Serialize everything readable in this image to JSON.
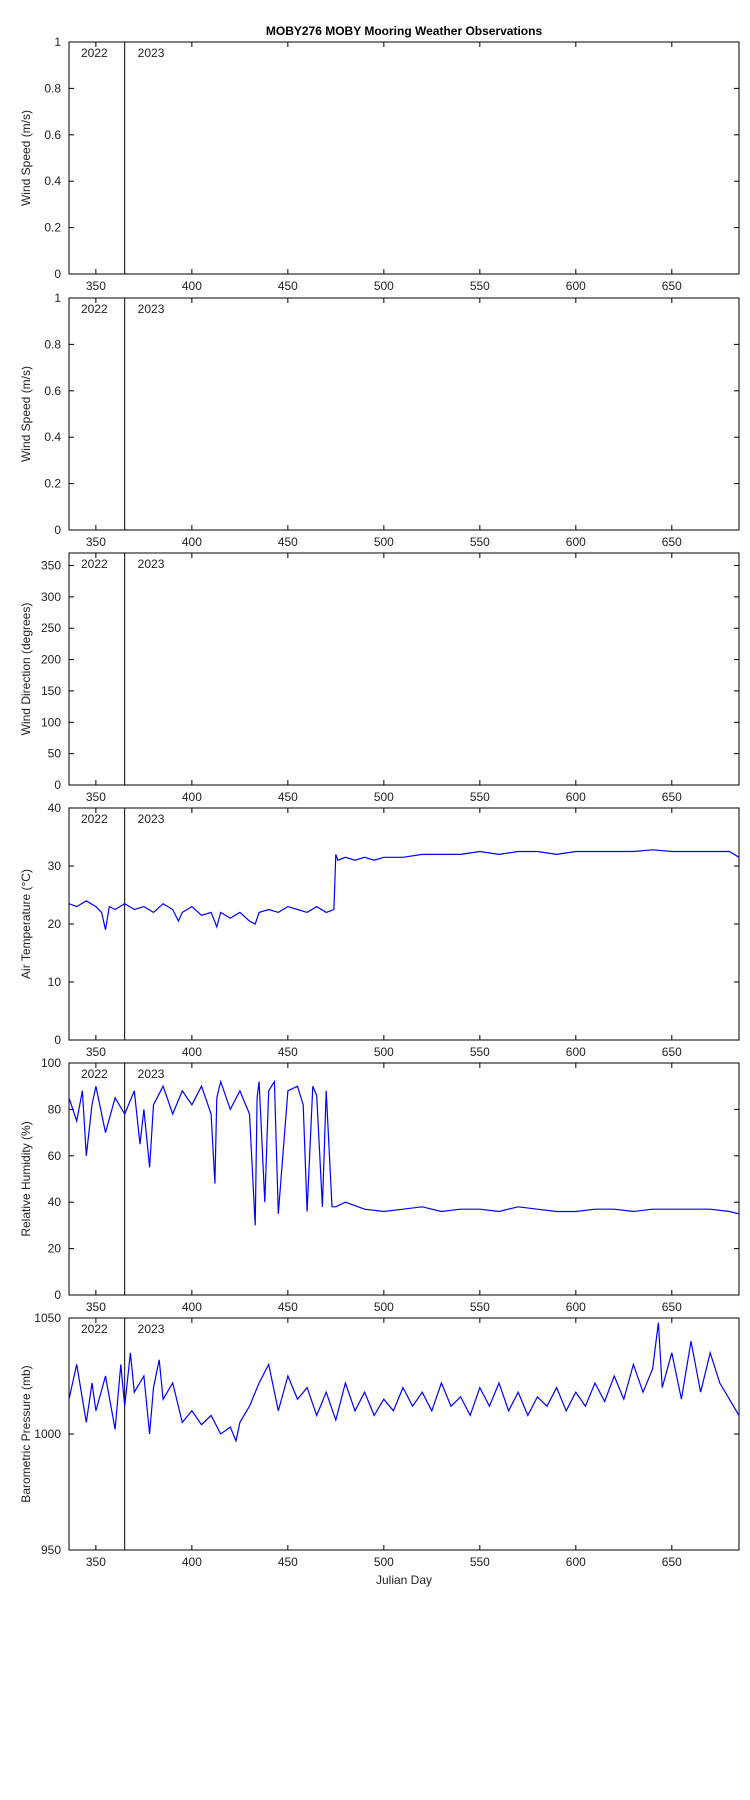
{
  "figure": {
    "title": "MOBY276 MOBY Mooring Weather Observations",
    "line_color": "#0000ff",
    "axis_color": "#000000"
  },
  "chart_data": [
    {
      "type": "line",
      "ylabel": "Wind Speed (m/s)",
      "xlim": [
        336,
        685
      ],
      "ylim": [
        0,
        1
      ],
      "yticks": [
        0,
        0.2,
        0.4,
        0.6,
        0.8,
        1
      ],
      "xticks": [
        350,
        400,
        450,
        500,
        550,
        600,
        650
      ],
      "year_divider_x": 365,
      "year_labels": [
        "2022",
        "2023"
      ],
      "series": []
    },
    {
      "type": "line",
      "ylabel": "Wind Speed (m/s)",
      "xlim": [
        336,
        685
      ],
      "ylim": [
        0,
        1
      ],
      "yticks": [
        0,
        0.2,
        0.4,
        0.6,
        0.8,
        1
      ],
      "xticks": [
        350,
        400,
        450,
        500,
        550,
        600,
        650
      ],
      "year_divider_x": 365,
      "year_labels": [
        "2022",
        "2023"
      ],
      "series": []
    },
    {
      "type": "line",
      "ylabel": "Wind Direction (degrees)",
      "xlim": [
        336,
        685
      ],
      "ylim": [
        0,
        370
      ],
      "yticks": [
        0,
        50,
        100,
        150,
        200,
        250,
        300,
        350
      ],
      "xticks": [
        350,
        400,
        450,
        500,
        550,
        600,
        650
      ],
      "year_divider_x": 365,
      "year_labels": [
        "2022",
        "2023"
      ],
      "series": []
    },
    {
      "type": "line",
      "ylabel": "Air Temperature (°C)",
      "xlim": [
        336,
        685
      ],
      "ylim": [
        0,
        40
      ],
      "yticks": [
        0,
        10,
        20,
        30,
        40
      ],
      "xticks": [
        350,
        400,
        450,
        500,
        550,
        600,
        650
      ],
      "year_divider_x": 365,
      "year_labels": [
        "2022",
        "2023"
      ],
      "series": [
        {
          "x": [
            336,
            340,
            345,
            350,
            353,
            355,
            357,
            360,
            365,
            370,
            375,
            380,
            385,
            390,
            393,
            395,
            400,
            405,
            410,
            413,
            415,
            420,
            425,
            430,
            433,
            435,
            440,
            445,
            450,
            455,
            460,
            465,
            470,
            474,
            475,
            476,
            480,
            485,
            490,
            495,
            500,
            510,
            520,
            530,
            540,
            550,
            560,
            570,
            580,
            590,
            600,
            610,
            620,
            630,
            640,
            650,
            660,
            670,
            680,
            685
          ],
          "y": [
            23.5,
            23,
            24,
            23,
            22,
            19,
            23,
            22.5,
            23.5,
            22.5,
            23,
            22,
            23.5,
            22.5,
            20.5,
            22,
            23,
            21.5,
            22,
            19.5,
            22,
            21,
            22,
            20.5,
            20,
            22,
            22.5,
            22,
            23,
            22.5,
            22,
            23,
            22,
            22.5,
            32,
            31,
            31.5,
            31,
            31.5,
            31,
            31.5,
            31.5,
            32,
            32,
            32,
            32.5,
            32,
            32.5,
            32.5,
            32,
            32.5,
            32.5,
            32.5,
            32.5,
            32.8,
            32.5,
            32.5,
            32.5,
            32.5,
            31.5
          ]
        }
      ]
    },
    {
      "type": "line",
      "ylabel": "Relative Humidity (%)",
      "xlim": [
        336,
        685
      ],
      "ylim": [
        0,
        100
      ],
      "yticks": [
        0,
        20,
        40,
        60,
        80,
        100
      ],
      "xticks": [
        350,
        400,
        450,
        500,
        550,
        600,
        650
      ],
      "year_divider_x": 365,
      "year_labels": [
        "2022",
        "2023"
      ],
      "series": [
        {
          "x": [
            336,
            340,
            343,
            345,
            348,
            350,
            355,
            360,
            365,
            370,
            373,
            375,
            378,
            380,
            385,
            390,
            395,
            400,
            405,
            410,
            412,
            413,
            415,
            420,
            425,
            430,
            433,
            434,
            435,
            438,
            440,
            443,
            445,
            450,
            455,
            458,
            460,
            463,
            465,
            468,
            470,
            473,
            475,
            480,
            490,
            500,
            510,
            520,
            530,
            540,
            550,
            560,
            570,
            580,
            590,
            600,
            610,
            620,
            630,
            640,
            650,
            660,
            670,
            680,
            685
          ],
          "y": [
            85,
            75,
            88,
            60,
            82,
            90,
            70,
            85,
            78,
            88,
            65,
            80,
            55,
            82,
            90,
            78,
            88,
            82,
            90,
            78,
            48,
            85,
            92,
            80,
            88,
            78,
            30,
            85,
            92,
            40,
            88,
            92,
            35,
            88,
            90,
            82,
            36,
            90,
            86,
            38,
            88,
            38,
            38,
            40,
            37,
            36,
            37,
            38,
            36,
            37,
            37,
            36,
            38,
            37,
            36,
            36,
            37,
            37,
            36,
            37,
            37,
            37,
            37,
            36,
            35
          ]
        }
      ]
    },
    {
      "type": "line",
      "ylabel": "Barometric Pressure (mb)",
      "xlim": [
        336,
        685
      ],
      "ylim": [
        950,
        1050
      ],
      "yticks": [
        950,
        1000,
        1050
      ],
      "xticks": [
        350,
        400,
        450,
        500,
        550,
        600,
        650
      ],
      "xlabel": "Julian Day",
      "year_divider_x": 365,
      "year_labels": [
        "2022",
        "2023"
      ],
      "series": [
        {
          "x": [
            336,
            340,
            345,
            348,
            350,
            355,
            360,
            363,
            365,
            368,
            370,
            375,
            378,
            380,
            383,
            385,
            390,
            395,
            400,
            405,
            410,
            415,
            420,
            423,
            425,
            430,
            435,
            440,
            445,
            450,
            455,
            460,
            465,
            470,
            475,
            480,
            485,
            490,
            495,
            500,
            505,
            510,
            515,
            520,
            525,
            530,
            535,
            540,
            545,
            550,
            555,
            560,
            565,
            570,
            575,
            580,
            585,
            590,
            595,
            600,
            605,
            610,
            615,
            620,
            625,
            630,
            635,
            640,
            643,
            645,
            650,
            655,
            660,
            665,
            670,
            675,
            680,
            685
          ],
          "y": [
            1015,
            1030,
            1005,
            1022,
            1010,
            1025,
            1002,
            1030,
            1012,
            1035,
            1018,
            1025,
            1000,
            1020,
            1032,
            1015,
            1022,
            1005,
            1010,
            1004,
            1008,
            1000,
            1003,
            997,
            1005,
            1012,
            1022,
            1030,
            1010,
            1025,
            1015,
            1020,
            1008,
            1018,
            1006,
            1022,
            1010,
            1018,
            1008,
            1015,
            1010,
            1020,
            1012,
            1018,
            1010,
            1022,
            1012,
            1016,
            1008,
            1020,
            1012,
            1022,
            1010,
            1018,
            1008,
            1016,
            1012,
            1020,
            1010,
            1018,
            1012,
            1022,
            1014,
            1025,
            1015,
            1030,
            1018,
            1028,
            1048,
            1020,
            1035,
            1015,
            1040,
            1018,
            1035,
            1022,
            1015,
            1008
          ]
        }
      ]
    }
  ]
}
